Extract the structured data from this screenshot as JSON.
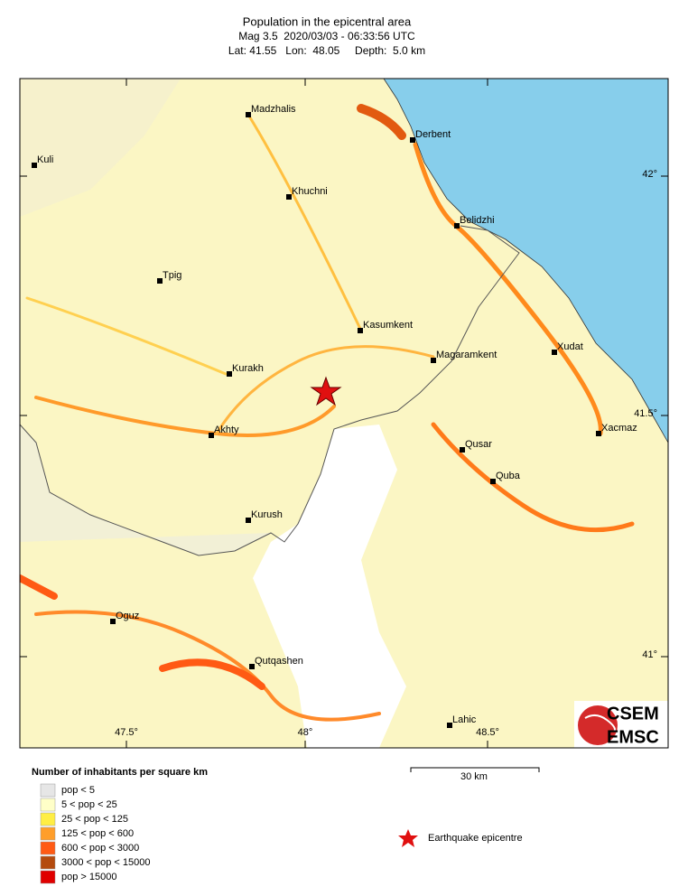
{
  "title": "Population in the epicentral area",
  "subtitle": "Mag 3.5  2020/03/03 - 06:33:56 UTC",
  "location": "Lat: 41.55   Lon:  48.05     Depth:  5.0 km",
  "map": {
    "cities": [
      "Madzhalis",
      "Derbent",
      "Kuli",
      "Khuchni",
      "Belidzhi",
      "Tpig",
      "Kasumkent",
      "Xudat",
      "Magaramkent",
      "Kurakh",
      "Akhty",
      "Xacmaz",
      "Qusar",
      "Quba",
      "Kurush",
      "Oguz",
      "Qutqashen",
      "Lahic"
    ],
    "lat_ticks": [
      "42°",
      "41.5°",
      "41°"
    ],
    "lon_ticks": [
      "47.5°",
      "48°",
      "48.5°"
    ],
    "scale_bar": "30 km"
  },
  "legend": {
    "title": "Number of inhabitants per square km",
    "entries": [
      "pop < 5",
      "5 < pop < 25",
      "25 < pop < 125",
      "125 < pop < 600",
      "600 < pop < 3000",
      "3000 < pop < 15000",
      "pop > 15000"
    ],
    "epicentre": "Earthquake epicentre"
  },
  "logo": {
    "top": "CSEM",
    "bottom": "EMSC"
  }
}
